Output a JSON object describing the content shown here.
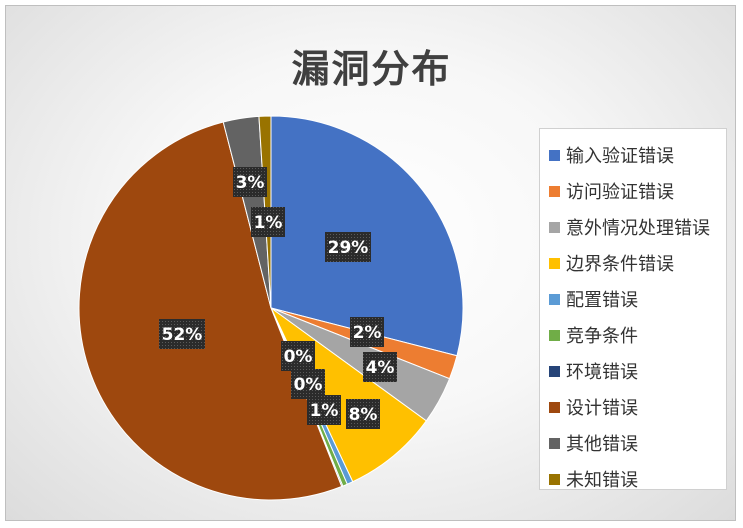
{
  "chart_data": {
    "type": "pie",
    "title": "漏洞分布",
    "legend_position": "right",
    "categories": [
      "输入验证错误",
      "访问验证错误",
      "意外情况处理错误",
      "边界条件错误",
      "配置错误",
      "竞争条件",
      "环境错误",
      "设计错误",
      "其他错误",
      "未知错误"
    ],
    "values": [
      29,
      2,
      4,
      8,
      0.5,
      0.4,
      0.1,
      52,
      3,
      1
    ],
    "data_labels": [
      "29%",
      "2%",
      "4%",
      "8%",
      "1%",
      "0%",
      "0%",
      "52%",
      "3%",
      "1%"
    ],
    "colors": [
      "#4472C4",
      "#ED7D31",
      "#A5A5A5",
      "#FFC000",
      "#5B9BD5",
      "#70AD47",
      "#264478",
      "#9E480E",
      "#636363",
      "#997300"
    ]
  }
}
